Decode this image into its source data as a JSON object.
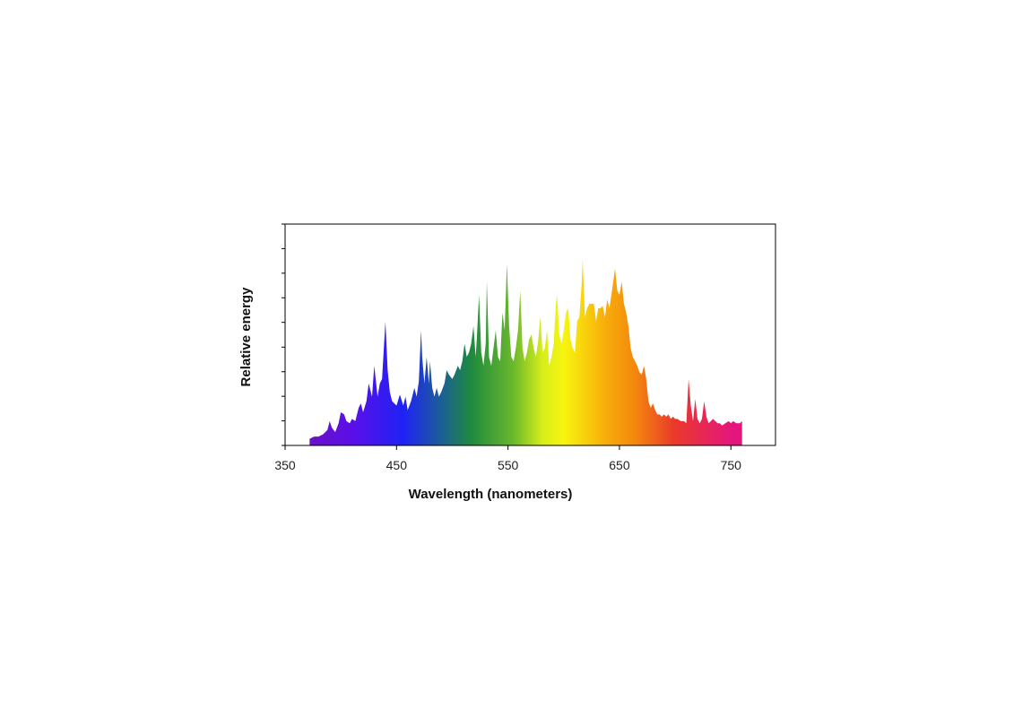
{
  "chart_data": {
    "type": "area",
    "xlabel": "Wavelength (nanometers)",
    "ylabel": "Relative energy",
    "xlim": [
      350,
      790
    ],
    "ylim": [
      0,
      100
    ],
    "x_ticks": [
      350,
      450,
      550,
      650,
      750
    ],
    "x_tick_labels": [
      "350",
      "450",
      "550",
      "650",
      "750"
    ],
    "y_ticks": [
      0,
      11.1,
      22.2,
      33.3,
      44.4,
      55.6,
      66.7,
      77.8,
      88.9,
      100
    ],
    "y_tick_labels": [],
    "grid": false,
    "legend": "none",
    "fill": "visible-spectrum color gradient",
    "series": [
      {
        "x": [
          372,
          376,
          380,
          384,
          388,
          390,
          392,
          395,
          398,
          400,
          403,
          405,
          408,
          410,
          413,
          416,
          418,
          420,
          423,
          425,
          428,
          430,
          433,
          435,
          437,
          440,
          442,
          444,
          446,
          448,
          450,
          453,
          456,
          458,
          460,
          463,
          466,
          468,
          470,
          472,
          473,
          475,
          477,
          479,
          480,
          482,
          484,
          486,
          488,
          490,
          493,
          495,
          497,
          500,
          502,
          505,
          507,
          509,
          511,
          513,
          515,
          517,
          519,
          521,
          522,
          524,
          526,
          528,
          530,
          531,
          533,
          535,
          537,
          539,
          541,
          543,
          545,
          547,
          549,
          551,
          553,
          555,
          557,
          559,
          561,
          563,
          565,
          567,
          569,
          571,
          573,
          575,
          577,
          579,
          581,
          583,
          585,
          587,
          589,
          591,
          593,
          594,
          596,
          598,
          600,
          602,
          604,
          606,
          608,
          610,
          612,
          614,
          616,
          617,
          619,
          621,
          623,
          625,
          627,
          629,
          631,
          633,
          635,
          637,
          639,
          641,
          643,
          645,
          646,
          648,
          650,
          652,
          654,
          656,
          658,
          660,
          662,
          664,
          666,
          668,
          670,
          672,
          674,
          676,
          678,
          680,
          682,
          684,
          686,
          688,
          690,
          692,
          694,
          696,
          698,
          700,
          702,
          705,
          708,
          710,
          712,
          714,
          716,
          718,
          720,
          722,
          724,
          726,
          728,
          730,
          732,
          734,
          736,
          738,
          740,
          742,
          745,
          748,
          750,
          752,
          755,
          758,
          760
        ],
        "y": [
          3,
          4,
          4,
          5,
          7,
          11,
          8,
          6,
          10,
          15,
          14,
          11,
          10,
          12,
          11,
          17,
          19,
          15,
          20,
          28,
          22,
          36,
          22,
          28,
          30,
          56,
          34,
          24,
          20,
          19,
          18,
          23,
          18,
          22,
          16,
          20,
          26,
          22,
          29,
          52,
          40,
          28,
          40,
          28,
          38,
          26,
          22,
          26,
          22,
          24,
          28,
          34,
          32,
          30,
          32,
          36,
          34,
          38,
          46,
          40,
          42,
          46,
          54,
          40,
          48,
          68,
          42,
          36,
          46,
          74,
          40,
          36,
          44,
          52,
          40,
          38,
          60,
          52,
          82,
          54,
          40,
          38,
          44,
          52,
          70,
          44,
          38,
          42,
          48,
          50,
          44,
          40,
          47,
          58,
          42,
          44,
          52,
          36,
          40,
          46,
          64,
          68,
          50,
          46,
          52,
          60,
          62,
          48,
          44,
          42,
          56,
          58,
          72,
          84,
          58,
          62,
          64,
          64,
          64,
          56,
          62,
          62,
          63,
          58,
          66,
          62,
          69,
          76,
          80,
          70,
          68,
          74,
          64,
          60,
          54,
          44,
          40,
          38,
          36,
          33,
          32,
          36,
          30,
          20,
          17,
          19,
          16,
          14,
          14,
          13,
          14,
          13,
          14,
          12,
          13,
          12,
          12,
          11,
          11,
          10,
          30,
          18,
          11,
          21,
          12,
          10,
          12,
          20,
          13,
          10,
          11,
          12,
          11,
          10,
          10,
          9,
          10,
          11,
          10,
          11,
          10,
          10,
          11
        ]
      }
    ]
  }
}
